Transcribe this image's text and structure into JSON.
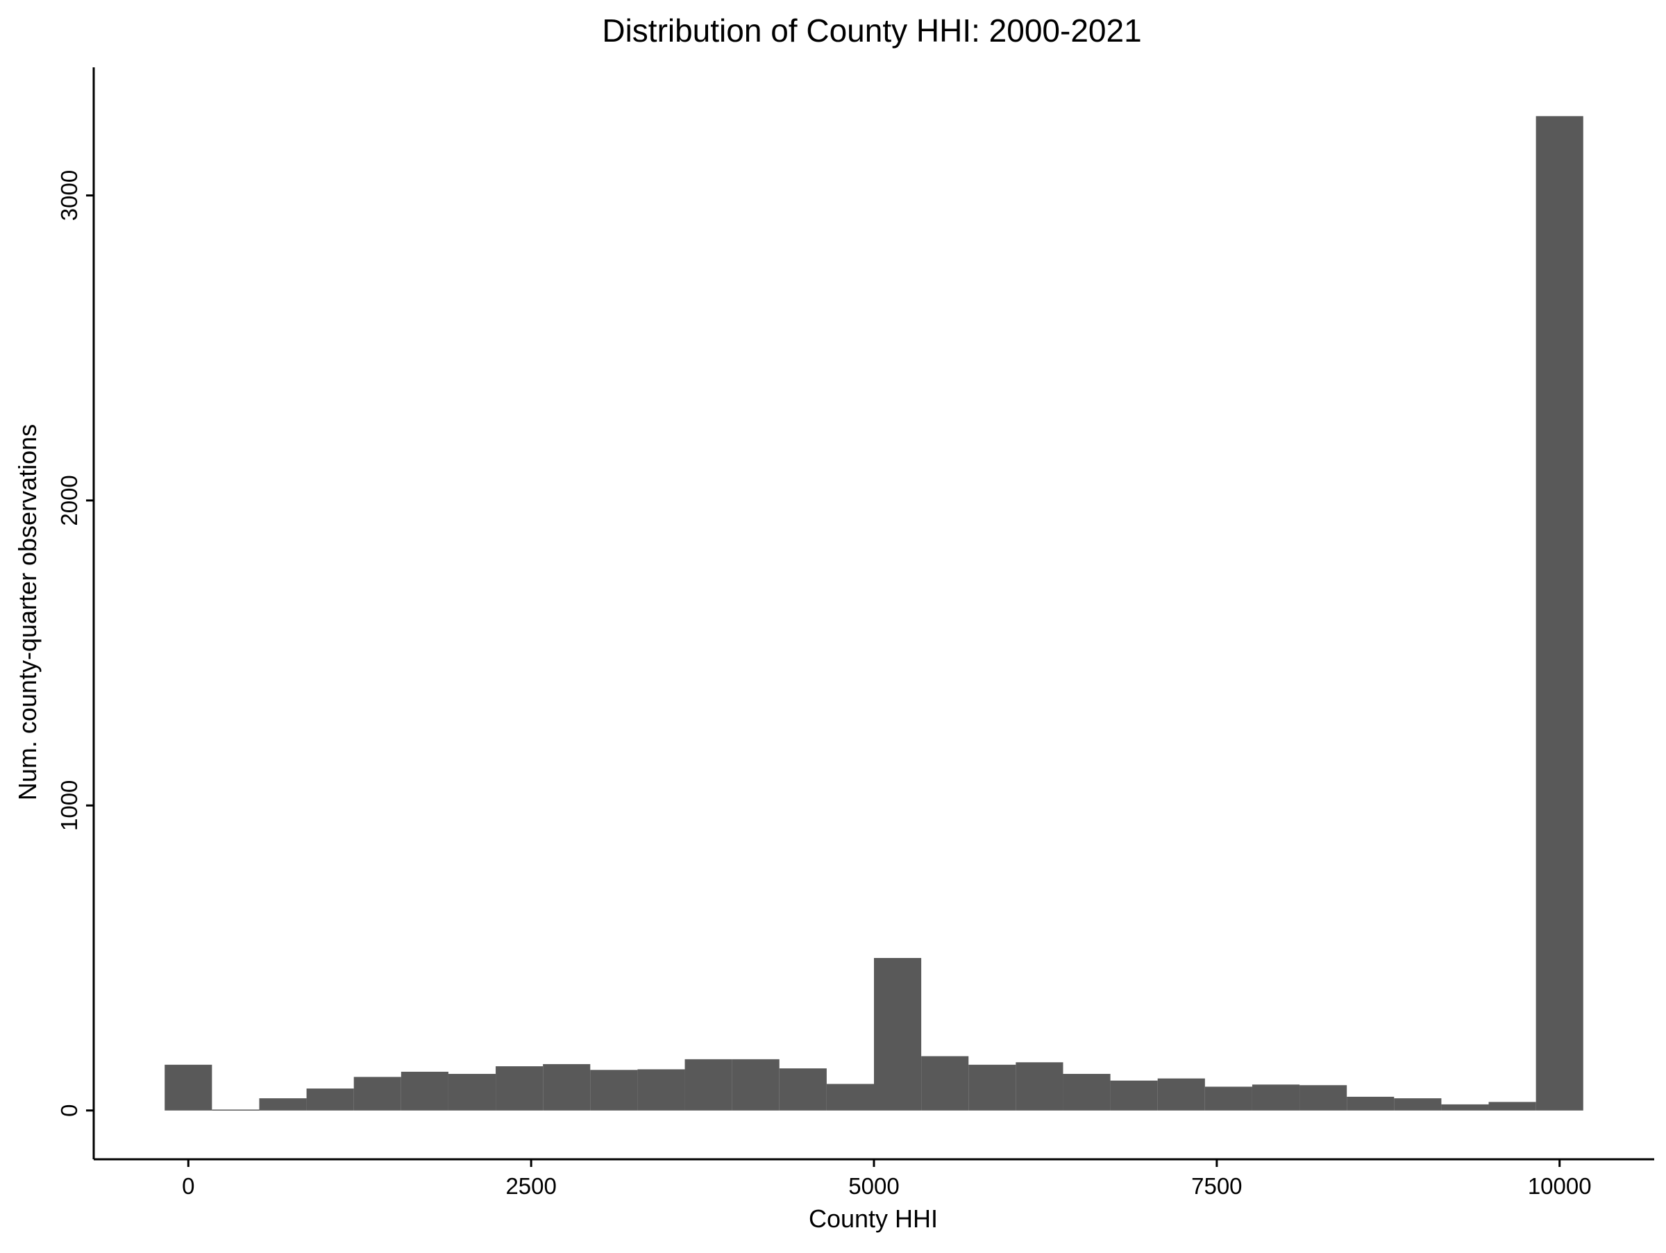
{
  "chart_data": {
    "type": "bar",
    "title": "Distribution of County HHI: 2000-2021",
    "xlabel": "County HHI",
    "ylabel": "Num. county-quarter observations",
    "bar_color": "#595959",
    "background": "#ffffff",
    "grid": false,
    "legend": "none",
    "xlim": [
      -690,
      10690
    ],
    "ylim": [
      -160,
      3420
    ],
    "x_ticks": [
      {
        "value": 0,
        "label": "0"
      },
      {
        "value": 2500,
        "label": "2500"
      },
      {
        "value": 5000,
        "label": "5000"
      },
      {
        "value": 7500,
        "label": "7500"
      },
      {
        "value": 10000,
        "label": "10000"
      }
    ],
    "y_ticks": [
      {
        "value": 0,
        "label": "0"
      },
      {
        "value": 1000,
        "label": "1000"
      },
      {
        "value": 2000,
        "label": "2000"
      },
      {
        "value": 3000,
        "label": "3000"
      }
    ],
    "bin_width": 344.83,
    "bin_centers": [
      0,
      344.83,
      689.66,
      1034.48,
      1379.31,
      1724.14,
      2068.97,
      2413.79,
      2758.62,
      3103.45,
      3448.28,
      3793.1,
      4137.93,
      4482.76,
      4827.59,
      5172.41,
      5517.24,
      5862.07,
      6206.9,
      6551.72,
      6896.55,
      7241.38,
      7586.21,
      7931.03,
      8275.86,
      8620.69,
      8965.52,
      9310.34,
      9655.17,
      10000
    ],
    "values": [
      150,
      3,
      40,
      72,
      110,
      127,
      120,
      145,
      152,
      133,
      135,
      168,
      168,
      138,
      87,
      500,
      178,
      150,
      158,
      120,
      98,
      105,
      78,
      85,
      83,
      45,
      40,
      20,
      28,
      3260
    ]
  }
}
